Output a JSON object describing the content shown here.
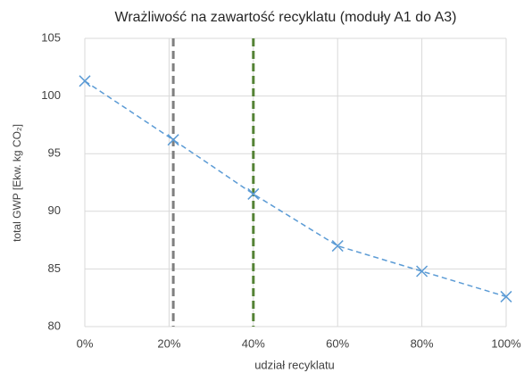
{
  "chart_data": {
    "type": "line",
    "title": "Wrażliwość na zawartość recyklatu (moduły A1 do A3)",
    "x_label": "udział recyklatu",
    "y_label": "total GWP [Ekw. kg CO₂]",
    "x": [
      0,
      21,
      40,
      60,
      80,
      100
    ],
    "series": [
      {
        "color": "#5b9bd5",
        "values": [
          101.3,
          96.2,
          91.5,
          87.0,
          84.8,
          82.6
        ]
      }
    ],
    "vlines": [
      {
        "x": 21,
        "color": "#7f7f7f"
      },
      {
        "x": 40,
        "color": "#548235"
      }
    ],
    "xlim": [
      0,
      100
    ],
    "xticks": [
      {
        "value": 0,
        "label": "0%"
      },
      {
        "value": 20,
        "label": "20%"
      },
      {
        "value": 40,
        "label": "40%"
      },
      {
        "value": 60,
        "label": "60%"
      },
      {
        "value": 80,
        "label": "80%"
      },
      {
        "value": 100,
        "label": "100%"
      }
    ],
    "ylim": [
      80,
      105
    ],
    "yticks": [
      80,
      85,
      90,
      95,
      100,
      105
    ],
    "grid": true
  }
}
